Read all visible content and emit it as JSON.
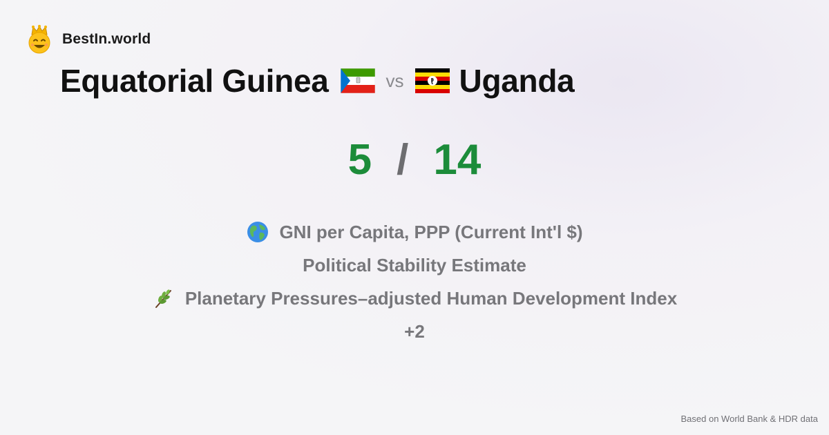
{
  "brand": {
    "name": "BestIn.world",
    "logo_icon": "crown-smiley-icon"
  },
  "comparison": {
    "left_country": "Equatorial Guinea",
    "left_flag_icon": "equatorial-guinea-flag-icon",
    "vs_label": "vs",
    "right_country": "Uganda",
    "right_flag_icon": "uganda-flag-icon"
  },
  "scores": {
    "left": "5",
    "separator": "/",
    "right": "14",
    "color": "#1c8c3a"
  },
  "metrics": [
    {
      "icon": "globe-icon",
      "label": "GNI per Capita, PPP (Current Int'l $)"
    },
    {
      "icon": "",
      "label": "Political Stability Estimate"
    },
    {
      "icon": "herb-icon",
      "label": "Planetary Pressures–adjusted Human Development Index"
    }
  ],
  "more_label": "+2",
  "footer": {
    "source": "Based on World Bank & HDR data"
  }
}
